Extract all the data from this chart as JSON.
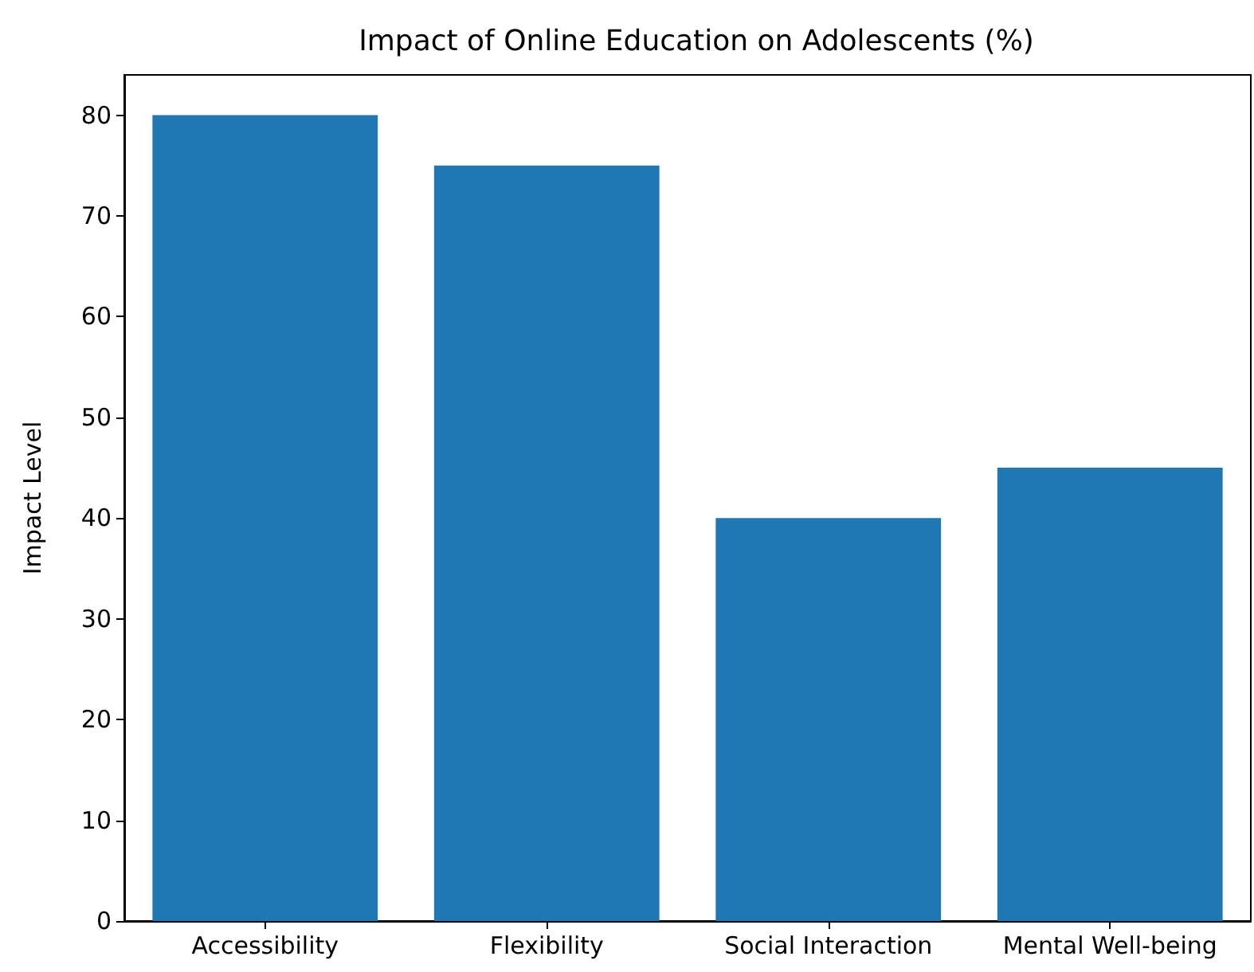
{
  "chart_data": {
    "type": "bar",
    "title": "Impact of Online Education on Adolescents (%)",
    "ylabel": "Impact Level",
    "categories": [
      "Accessibility",
      "Flexibility",
      "Social Interaction",
      "Mental Well-being"
    ],
    "values": [
      80,
      75,
      40,
      45
    ],
    "color": "#1f77b4",
    "ylim": [
      0,
      84
    ],
    "yticks": [
      0,
      10,
      20,
      30,
      40,
      50,
      60,
      70,
      80
    ],
    "grid": false
  }
}
